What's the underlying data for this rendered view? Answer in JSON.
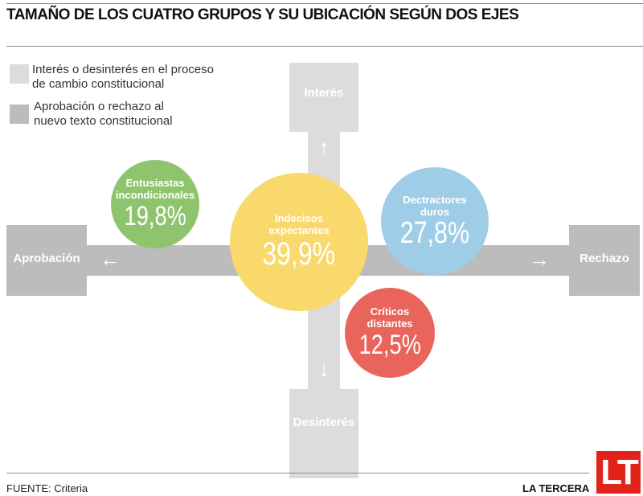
{
  "title": "TAMAÑO DE LOS CUATRO GRUPOS Y SU UBICACIÓN SEGÚN DOS EJES",
  "legend": [
    {
      "label": "Interés o desinterés en el proceso de cambio constitucional",
      "line1": " Interés o desinterés en el proceso",
      "line2": "de cambio constitucional",
      "color": "#dcdcdc"
    },
    {
      "label": "Aprobación o rechazo al nuevo texto constitucional",
      "line1": "Aprobación o rechazo al",
      "line2": "nuevo texto constitucional",
      "color": "#bcbcbc"
    }
  ],
  "axes": {
    "vertical": {
      "top": "Interés",
      "bottom": "Desinterés",
      "top_arrow": "↑",
      "bottom_arrow": "↓"
    },
    "horizontal": {
      "left": "Aprobación",
      "right": "Rechazo",
      "left_arrow": "←",
      "right_arrow": "→"
    }
  },
  "groups": [
    {
      "name1": "Entusiastas",
      "name2": "incondicionales",
      "value": "19,8%",
      "color": "#8fc46f"
    },
    {
      "name1": "Indecisos",
      "name2": "expectantes",
      "value": "39,9%",
      "color": "#f9d86c"
    },
    {
      "name1": "Dectractores",
      "name2": "duros",
      "value": "27,8%",
      "color": "#9fcde8"
    },
    {
      "name1": "Críticos",
      "name2": "distantes",
      "value": "12,5%",
      "color": "#e9645b"
    }
  ],
  "footer": {
    "source": "FUENTE: Criteria",
    "brand": "LA TERCERA",
    "logo": "LT",
    "logo_color": "#e2231a"
  }
}
